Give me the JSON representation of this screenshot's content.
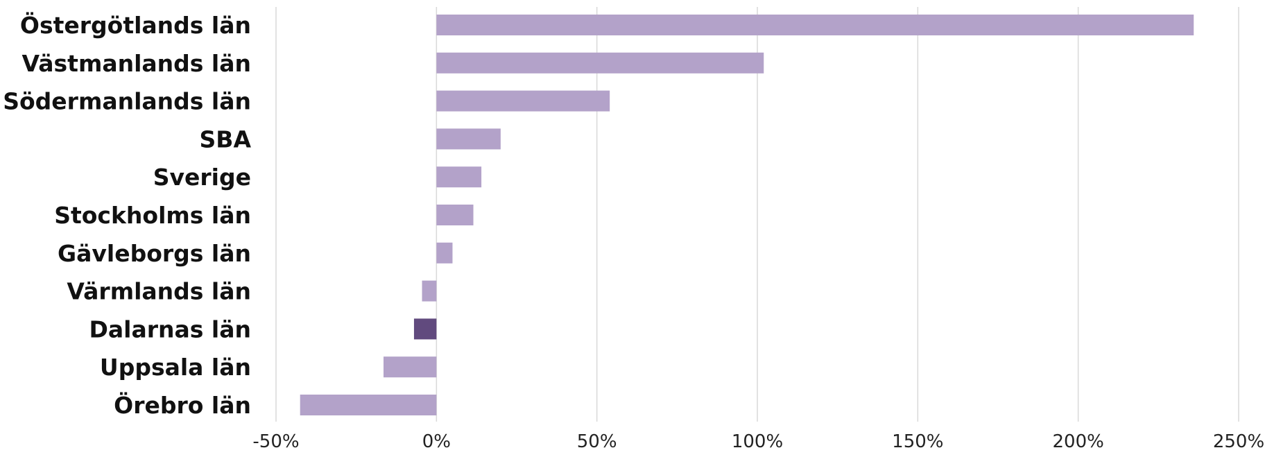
{
  "chart_data": {
    "type": "bar",
    "orientation": "horizontal",
    "categories": [
      "Östergötlands län",
      "Västmanlands län",
      "Södermanlands län",
      "SBA",
      "Sverige",
      "Stockholms län",
      "Gävleborgs län",
      "Värmlands län",
      "Dalarnas län",
      "Uppsala län",
      "Örebro län"
    ],
    "values": [
      236,
      102,
      54,
      20,
      14,
      11.5,
      5,
      -4.5,
      -7,
      -16.5,
      -42.5
    ],
    "value_unit": "%",
    "xlim": [
      -50,
      250
    ],
    "xticks": [
      "-50%",
      "0%",
      "50%",
      "100%",
      "150%",
      "200%",
      "250%"
    ],
    "xtick_values": [
      -50,
      0,
      50,
      100,
      150,
      200,
      250
    ],
    "grid": true,
    "grid_axis": "x",
    "legend": "none",
    "title": "",
    "xlabel": "",
    "ylabel": "",
    "colors": {
      "default": "#b3a2c9",
      "highlight": "#614a7e",
      "gridline": "#d9d9d9"
    },
    "highlight_category": "Dalarnas län"
  }
}
